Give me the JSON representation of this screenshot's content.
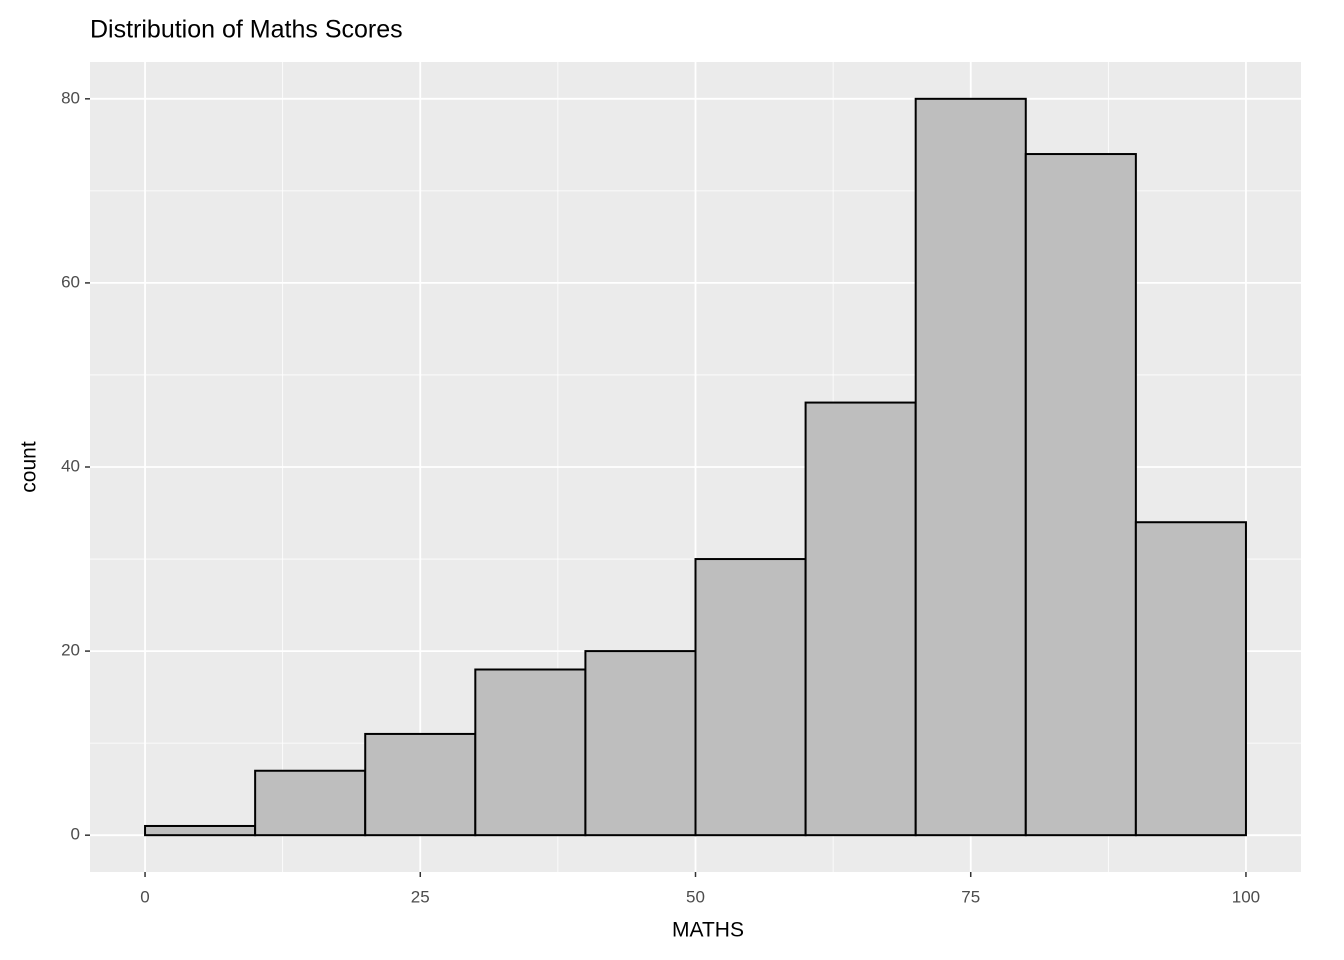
{
  "chart_data": {
    "type": "histogram",
    "title": "Distribution of Maths Scores",
    "x_label": "MATHS",
    "y_label": "count",
    "bins": [
      0,
      10,
      20,
      30,
      40,
      50,
      60,
      70,
      80,
      90,
      100
    ],
    "counts": [
      1,
      7,
      11,
      18,
      20,
      30,
      47,
      80,
      74,
      34
    ],
    "color": "#bebebe",
    "edge_color": "#000000",
    "xlim": [
      -5,
      105
    ],
    "xticks": [
      0,
      25,
      50,
      75,
      100
    ],
    "ylim": [
      -4,
      84
    ],
    "yticks": [
      0,
      20,
      40,
      60,
      80
    ],
    "grid": true,
    "minor_grid": true
  }
}
